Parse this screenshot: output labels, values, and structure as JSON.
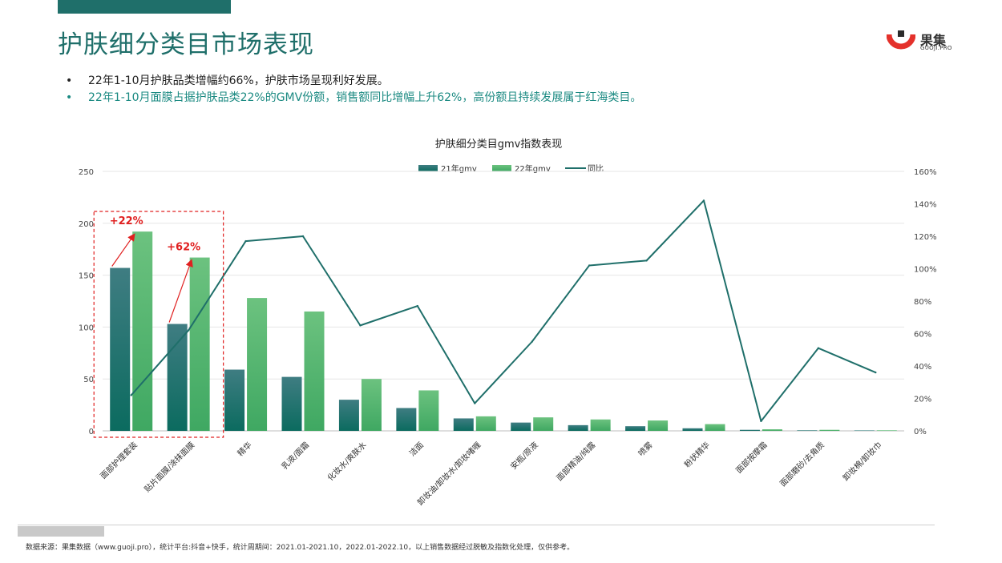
{
  "page": {
    "title": "护肤细分类目市场表现",
    "logo_name": "果集",
    "logo_sub": "GUOJI.PRO",
    "bullets": [
      {
        "text": "22年1-10月护肤品类增幅约66%，护肤市场呈现利好发展。",
        "color": "#222222"
      },
      {
        "text": "22年1-10月面膜占据护肤品类22%的GMV份额，销售额同比增幅上升62%，高份额且持续发展属于红海类目。",
        "color": "#1b8a82"
      }
    ],
    "source": "数据来源：果集数据（www.guoji.pro），统计平台:抖音+快手，统计周期间：2021.01-2021.10，2022.01-2022.10，以上销售数据经过脱敏及指数化处理，仅供参考。"
  },
  "colors": {
    "accent": "#1f6f6a",
    "bar21_top": "#3f7d82",
    "bar21_bottom": "#0b6b5f",
    "bar22_top": "#6cc27f",
    "bar22_bottom": "#3fa862",
    "line": "#1f6f6a",
    "highlight": "#e02020",
    "grid": "#e6e6e6"
  },
  "chart_data": {
    "type": "bar",
    "title": "护肤细分类目gmv指数表现",
    "categories": [
      "面部护理套装",
      "贴片面膜/涂抹面膜",
      "精华",
      "乳液/面霜",
      "化妆水/爽肤水",
      "洁面",
      "卸妆油/卸妆水/卸妆啫喱",
      "安瓶/原液",
      "面部精油/纯露",
      "喷雾",
      "粉状精华",
      "面部按摩霜",
      "面部磨砂/去角质",
      "卸妆棉/卸妆巾"
    ],
    "series": [
      {
        "name": "21年gmv",
        "type": "bar",
        "axis": "left",
        "values": [
          157,
          103,
          59,
          52,
          30,
          22,
          12,
          8,
          5.5,
          4.5,
          2.5,
          1,
          0.5,
          0.4
        ]
      },
      {
        "name": "22年gmv",
        "type": "bar",
        "axis": "left",
        "values": [
          192,
          167,
          128,
          115,
          50,
          39,
          14,
          13,
          11,
          10,
          6.5,
          1.5,
          1,
          0.5
        ]
      },
      {
        "name": "同比",
        "type": "line",
        "axis": "right",
        "values": [
          0.22,
          0.62,
          1.17,
          1.2,
          0.65,
          0.77,
          0.17,
          0.55,
          1.02,
          1.05,
          1.42,
          0.06,
          0.51,
          0.36
        ]
      }
    ],
    "left_axis": {
      "ylim": [
        0,
        250
      ],
      "ticks": [
        "0",
        "50",
        "100",
        "150",
        "200",
        "250"
      ]
    },
    "right_axis": {
      "ylim": [
        0,
        1.6
      ],
      "ticks": [
        "0%",
        "20%",
        "40%",
        "60%",
        "80%",
        "100%",
        "120%",
        "140%",
        "160%"
      ]
    },
    "annotations": [
      {
        "text": "+22%",
        "category_index": 0
      },
      {
        "text": "+62%",
        "category_index": 1
      }
    ],
    "highlight_categories": [
      0,
      1
    ],
    "legend_position": "top-center",
    "grid": true
  }
}
